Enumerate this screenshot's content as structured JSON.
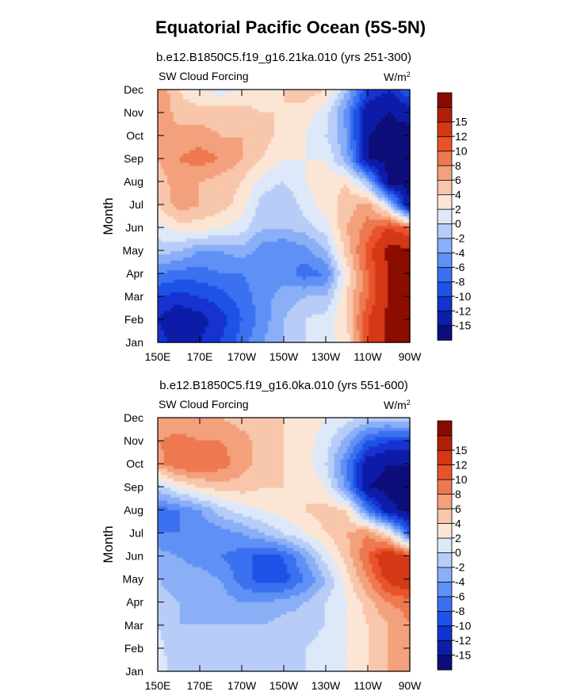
{
  "figure_title": "Equatorial Pacific Ocean (5S-5N)",
  "chart_data": [
    {
      "type": "heatmap",
      "title": "b.e12.B1850C5.f19_g16.21ka.010 (yrs 251-300)",
      "left_label": "SW Cloud Forcing",
      "units_label": "W/m",
      "units_sup": "2",
      "ylabel": "Month",
      "xlabel": "",
      "x_ticks": [
        "150E",
        "170E",
        "170W",
        "150W",
        "130W",
        "110W",
        "90W"
      ],
      "y_ticks": [
        "Jan",
        "Feb",
        "Mar",
        "Apr",
        "May",
        "Jun",
        "Jul",
        "Aug",
        "Sep",
        "Oct",
        "Nov",
        "Dec"
      ],
      "colorbar_labels": [
        "-15",
        "-12",
        "-10",
        "-8",
        "-6",
        "-4",
        "-2",
        "0",
        "2",
        "4",
        "6",
        "8",
        "10",
        "12",
        "15"
      ],
      "x": [
        150,
        160,
        170,
        180,
        190,
        200,
        210,
        220,
        230,
        240,
        250,
        260,
        270
      ],
      "values": [
        [
          -11,
          -13,
          -12,
          -10,
          -7,
          -4,
          -2,
          0,
          1,
          3,
          12,
          16,
          16
        ],
        [
          -12,
          -14,
          -13,
          -11,
          -8,
          -5,
          -2,
          0,
          1,
          4,
          12,
          16,
          16
        ],
        [
          -10,
          -11,
          -10,
          -9,
          -7,
          -5,
          -3,
          -2,
          -2,
          4,
          10,
          15,
          16
        ],
        [
          -6,
          -7,
          -7,
          -6,
          -6,
          -5,
          -5,
          -7,
          -6,
          3,
          10,
          15,
          16
        ],
        [
          -1,
          -2,
          -4,
          -4,
          -3,
          -5,
          -6,
          -5,
          -2,
          5,
          11,
          16,
          16
        ],
        [
          1,
          3,
          3,
          2,
          1,
          -2,
          -2,
          -1,
          1,
          6,
          9,
          12,
          10
        ],
        [
          4,
          7,
          6,
          5,
          3,
          -1,
          -2,
          1,
          3,
          5,
          7,
          0,
          -15
        ],
        [
          5,
          7,
          6,
          5,
          4,
          1,
          0,
          2,
          3,
          4,
          -2,
          -16,
          -16
        ],
        [
          6,
          8,
          9,
          8,
          6,
          4,
          2,
          2,
          2,
          -3,
          -15,
          -16,
          -16
        ],
        [
          7,
          7,
          7,
          6,
          6,
          5,
          3,
          2,
          0,
          -4,
          -15,
          -16,
          -16
        ],
        [
          8,
          5,
          5,
          5,
          5,
          4,
          4,
          3,
          1,
          -5,
          -14,
          -15,
          -14
        ],
        [
          8,
          4,
          2,
          1,
          2,
          3,
          4,
          5,
          4,
          -2,
          -10,
          -12,
          -8
        ]
      ]
    },
    {
      "type": "heatmap",
      "title": "b.e12.B1850C5.f19_g16.0ka.010 (yrs 551-600)",
      "left_label": "SW Cloud Forcing",
      "units_label": "W/m",
      "units_sup": "2",
      "ylabel": "Month",
      "xlabel": "",
      "x_ticks": [
        "150E",
        "170E",
        "170W",
        "150W",
        "130W",
        "110W",
        "90W"
      ],
      "y_ticks": [
        "Jan",
        "Feb",
        "Mar",
        "Apr",
        "May",
        "Jun",
        "Jul",
        "Aug",
        "Sep",
        "Oct",
        "Nov",
        "Dec"
      ],
      "colorbar_labels": [
        "-15",
        "-12",
        "-10",
        "-8",
        "-6",
        "-4",
        "-2",
        "0",
        "2",
        "4",
        "6",
        "8",
        "10",
        "12",
        "15"
      ],
      "x": [
        150,
        160,
        170,
        180,
        190,
        200,
        210,
        220,
        230,
        240,
        250,
        260,
        270
      ],
      "values": [
        [
          1,
          -1,
          -2,
          -2,
          -1,
          -1,
          0,
          0,
          1,
          2,
          4,
          6,
          7
        ],
        [
          1,
          -2,
          -2,
          -2,
          -2,
          -1,
          -1,
          0,
          1,
          2,
          4,
          6,
          7
        ],
        [
          0,
          -2,
          -2,
          -2,
          -2,
          -2,
          -1,
          -1,
          0,
          2,
          4,
          6,
          8
        ],
        [
          -1,
          -2,
          -3,
          -3,
          -4,
          -4,
          -3,
          -2,
          0,
          2,
          5,
          8,
          9
        ],
        [
          -2,
          -3,
          -3,
          -4,
          -7,
          -9,
          -9,
          -6,
          -2,
          3,
          8,
          13,
          15
        ],
        [
          -3,
          -4,
          -5,
          -6,
          -7,
          -9,
          -8,
          -4,
          1,
          5,
          10,
          15,
          12
        ],
        [
          -6,
          -6,
          -6,
          -5,
          -4,
          -2,
          0,
          2,
          4,
          6,
          8,
          3,
          -8
        ],
        [
          -7,
          -6,
          -4,
          -1,
          1,
          2,
          3,
          4,
          5,
          4,
          -6,
          -14,
          -16
        ],
        [
          -1,
          2,
          4,
          5,
          5,
          4,
          4,
          4,
          2,
          -5,
          -15,
          -16,
          -16
        ],
        [
          7,
          10,
          10,
          9,
          7,
          5,
          4,
          3,
          0,
          -6,
          -14,
          -15,
          -15
        ],
        [
          8,
          9,
          8,
          8,
          7,
          5,
          4,
          3,
          1,
          -3,
          -8,
          -10,
          -10
        ],
        [
          6,
          6,
          6,
          6,
          5,
          4,
          4,
          3,
          2,
          1,
          -1,
          -1,
          0
        ]
      ]
    }
  ],
  "colors": {
    "levels": [
      "#0b0e7a",
      "#0c1fa8",
      "#1233d0",
      "#1f52e6",
      "#3a70f0",
      "#5f90f5",
      "#8aaff7",
      "#b7cdf8",
      "#dde8f9",
      "#fbe6d6",
      "#f8c6ab",
      "#f3a17c",
      "#ee7850",
      "#e8532a",
      "#d43812",
      "#b01f08",
      "#8a0a02"
    ]
  }
}
